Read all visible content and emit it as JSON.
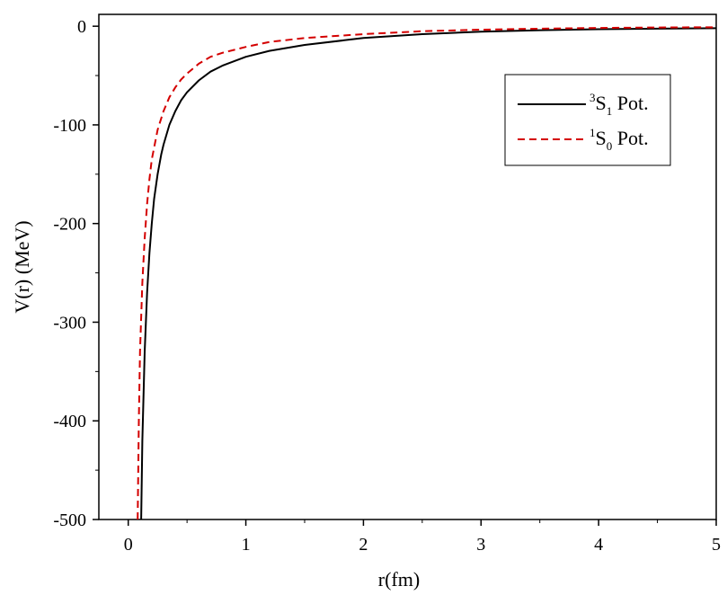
{
  "chart_data": {
    "type": "line",
    "title": "",
    "xlabel": "r(fm)",
    "ylabel": "V(r) (MeV)",
    "xlim": [
      -0.25,
      5
    ],
    "ylim": [
      -500,
      12
    ],
    "x_ticks": [
      0,
      1,
      2,
      3,
      4,
      5
    ],
    "y_ticks": [
      0,
      -100,
      -200,
      -300,
      -400,
      -500
    ],
    "x_tick_labels": [
      "0",
      "1",
      "2",
      "3",
      "4",
      "5"
    ],
    "y_tick_labels": [
      "0",
      "-100",
      "-200",
      "-300",
      "-400",
      "-500"
    ],
    "grid": false,
    "legend_position": "top-right",
    "series": [
      {
        "name": "3S1 Pot.",
        "legend": {
          "sup": "3",
          "base": "S",
          "sub": "1",
          "suffix": " Pot."
        },
        "color": "#000000",
        "dash": "solid",
        "x": [
          0.11,
          0.12,
          0.14,
          0.16,
          0.18,
          0.2,
          0.22,
          0.25,
          0.28,
          0.3,
          0.35,
          0.4,
          0.45,
          0.5,
          0.6,
          0.7,
          0.8,
          1.0,
          1.2,
          1.5,
          2.0,
          2.5,
          3.0,
          3.5,
          4.0,
          4.5,
          5.0
        ],
        "y": [
          -500,
          -420,
          -330,
          -270,
          -230,
          -200,
          -175,
          -150,
          -130,
          -120,
          -100,
          -86,
          -75,
          -67,
          -55,
          -46,
          -40,
          -31,
          -25,
          -19,
          -12,
          -8,
          -5.5,
          -4,
          -3,
          -2.5,
          -2
        ]
      },
      {
        "name": "1S0 Pot.",
        "legend": {
          "sup": "1",
          "base": "S",
          "sub": "0",
          "suffix": " Pot."
        },
        "color": "#d40000",
        "dash": "dashed",
        "x": [
          0.08,
          0.09,
          0.1,
          0.12,
          0.14,
          0.16,
          0.18,
          0.2,
          0.25,
          0.3,
          0.35,
          0.4,
          0.45,
          0.5,
          0.6,
          0.7,
          0.8,
          1.0,
          1.2,
          1.5,
          2.0,
          2.5,
          3.0,
          3.5,
          4.0,
          4.5,
          5.0
        ],
        "y": [
          -500,
          -400,
          -330,
          -260,
          -215,
          -180,
          -155,
          -135,
          -105,
          -86,
          -72,
          -62,
          -54,
          -48,
          -38,
          -31,
          -27,
          -21,
          -16,
          -12,
          -8,
          -5,
          -3.5,
          -2.5,
          -1.8,
          -1.3,
          -1
        ]
      }
    ]
  }
}
